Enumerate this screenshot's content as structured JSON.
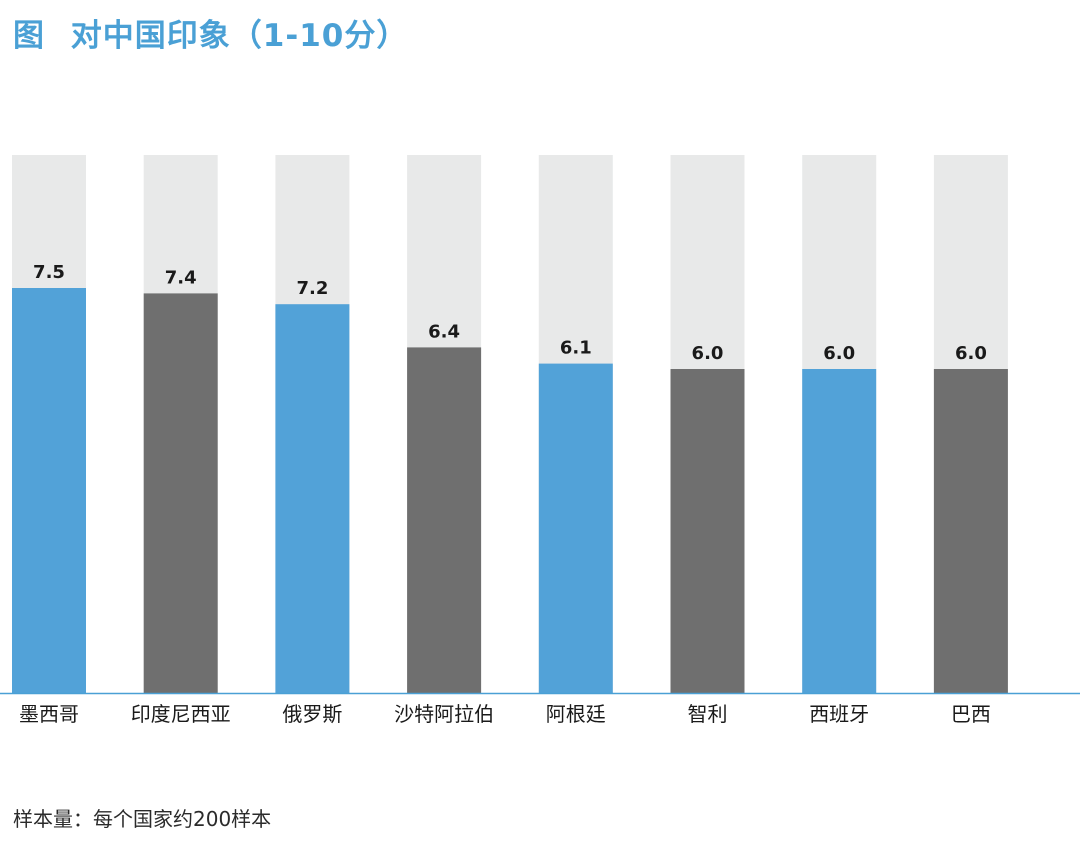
{
  "chart_data": {
    "type": "bar",
    "title": "图 对中国印象（1-10分）",
    "title_prefix": "图",
    "title_text": "对中国印象（1-10分）",
    "xlabel": "",
    "ylabel": "",
    "ylim": [
      0,
      10
    ],
    "grid": false,
    "legend": "none",
    "categories": [
      "墨西哥",
      "印度尼西亚",
      "俄罗斯",
      "沙特阿拉伯",
      "阿根廷",
      "智利",
      "西班牙",
      "巴西"
    ],
    "values": [
      7.5,
      7.4,
      7.2,
      6.4,
      6.1,
      6.0,
      6.0,
      6.0
    ],
    "value_labels": [
      "7.5",
      "7.4",
      "7.2",
      "6.4",
      "6.1",
      "6.0",
      "6.0",
      "6.0"
    ],
    "bar_color_keys": [
      "blue",
      "gray",
      "blue",
      "gray",
      "blue",
      "gray",
      "blue",
      "gray"
    ]
  },
  "colors": {
    "title": "#4aa0d5",
    "blue": "#52a2d8",
    "gray": "#6f6f6f",
    "track": "#e8e9e9",
    "axis": "#4aa0d5",
    "label": "#1a1a1a",
    "footnote": "#2b2b2b"
  },
  "footnote": "样本量：每个国家约200样本"
}
